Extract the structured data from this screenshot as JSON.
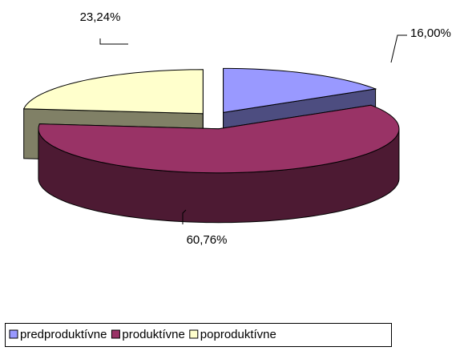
{
  "chart_data": {
    "type": "pie",
    "categories": [
      "predproduktívne",
      "produktívne",
      "poproduktívne"
    ],
    "values": [
      16.0,
      60.76,
      23.24
    ],
    "value_labels": [
      "16,00%",
      "60,76%",
      "23,24%"
    ],
    "colors": [
      "#9999ff",
      "#993366",
      "#ffffcc"
    ],
    "side_colors": [
      "#4d4d80",
      "#4d1a33",
      "#808066"
    ],
    "legend": "bottom"
  }
}
